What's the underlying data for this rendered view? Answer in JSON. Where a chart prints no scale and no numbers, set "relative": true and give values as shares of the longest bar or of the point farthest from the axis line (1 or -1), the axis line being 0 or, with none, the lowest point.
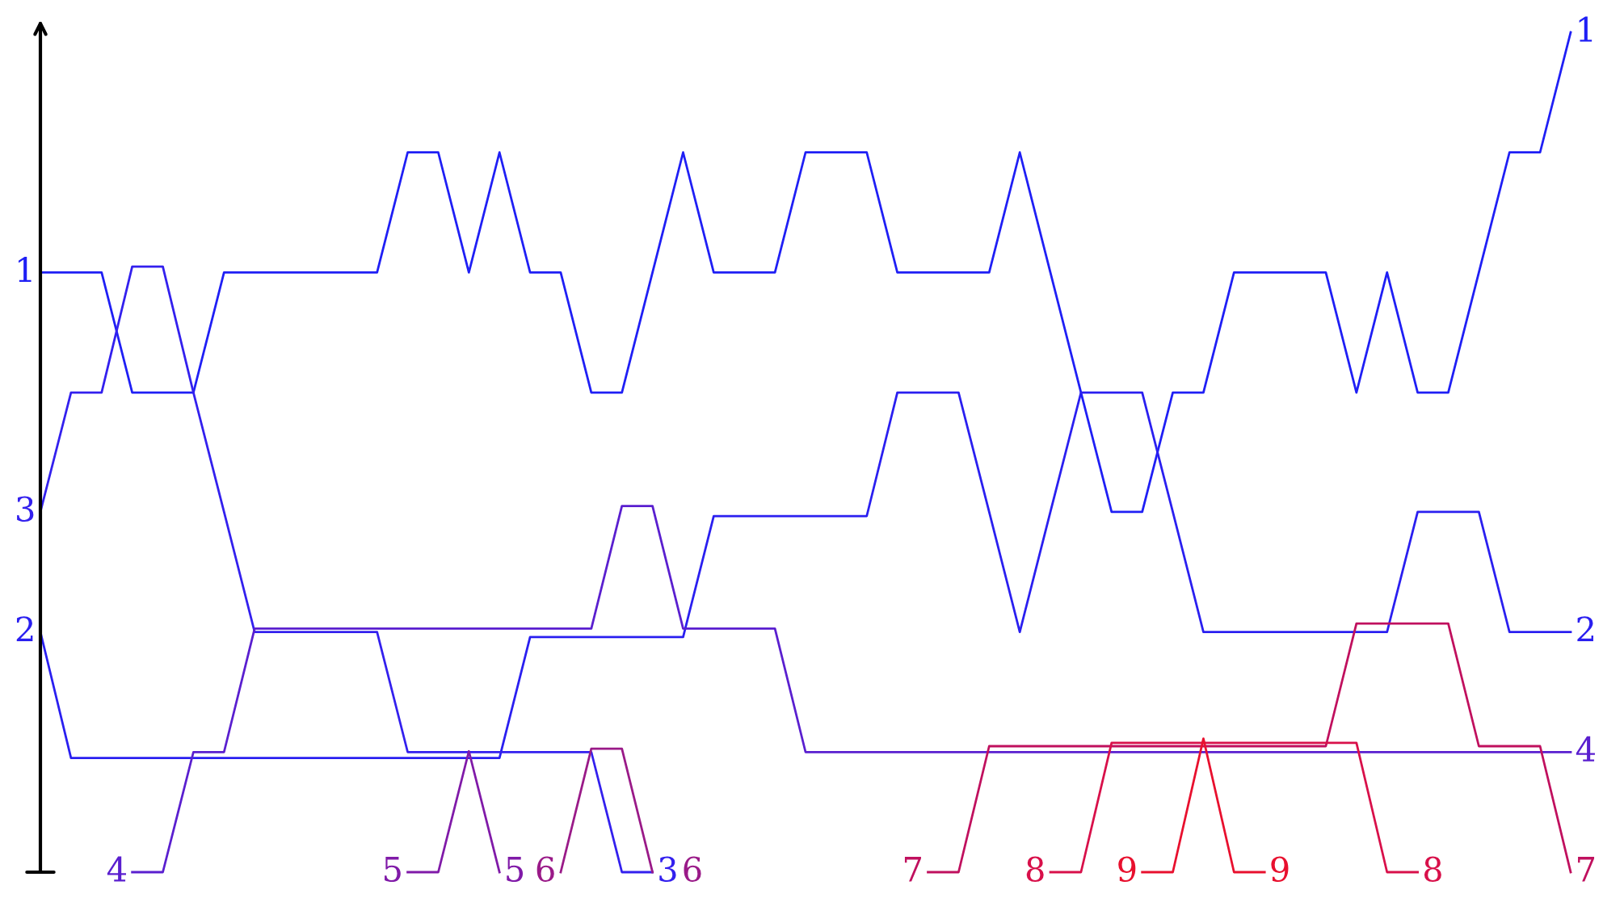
{
  "chart_data": {
    "type": "line",
    "relative": true,
    "categories": [
      null,
      null,
      null,
      null,
      null,
      null,
      null,
      null,
      null,
      null,
      null,
      null,
      null,
      null,
      null,
      null,
      null,
      null,
      null,
      null,
      null,
      null,
      null,
      null,
      null,
      null,
      null,
      null,
      null,
      null,
      null,
      null,
      null,
      null,
      null,
      null,
      null,
      null,
      null,
      null,
      null,
      null,
      null,
      null,
      null,
      null,
      null,
      null,
      null,
      null,
      null
    ],
    "series": [
      {
        "name": "1",
        "color": "#1f1ff5",
        "values": [
          0.714,
          0.714,
          0.714,
          0.571,
          0.571,
          0.571,
          0.714,
          0.714,
          0.714,
          0.714,
          0.714,
          0.714,
          0.857,
          0.857,
          0.714,
          0.857,
          0.714,
          0.714,
          0.571,
          0.571,
          0.714,
          0.857,
          0.714,
          0.714,
          0.714,
          0.857,
          0.857,
          0.857,
          0.714,
          0.714,
          0.714,
          0.714,
          0.857,
          0.714,
          0.571,
          0.429,
          0.429,
          0.571,
          0.571,
          0.714,
          0.714,
          0.714,
          0.714,
          0.571,
          0.714,
          0.571,
          0.571,
          0.714,
          0.857,
          0.857,
          1
        ]
      },
      {
        "name": "2",
        "color": "#2a1ff0",
        "values": [
          0.286,
          0.136,
          0.136,
          0.136,
          0.136,
          0.136,
          0.136,
          0.136,
          0.136,
          0.136,
          0.136,
          0.136,
          0.136,
          0.136,
          0.136,
          0.136,
          0.28,
          0.28,
          0.28,
          0.28,
          0.28,
          0.28,
          0.424,
          0.424,
          0.424,
          0.424,
          0.424,
          0.424,
          0.571,
          0.571,
          0.571,
          0.429,
          0.286,
          0.429,
          0.571,
          0.571,
          0.571,
          0.429,
          0.286,
          0.286,
          0.286,
          0.286,
          0.286,
          0.286,
          0.286,
          0.429,
          0.429,
          0.429,
          0.286,
          0.286,
          0.286
        ]
      },
      {
        "name": "3",
        "color": "#3320ee",
        "values": [
          0.429,
          0.571,
          0.571,
          0.721,
          0.721,
          0.571,
          0.429,
          0.286,
          0.286,
          0.286,
          0.286,
          0.286,
          0.143,
          0.143,
          0.143,
          0.143,
          0.143,
          0.143,
          0.143,
          0,
          0,
          null,
          null,
          null,
          null,
          null,
          null,
          null,
          null,
          null,
          null,
          null,
          null,
          null,
          null,
          null,
          null,
          null,
          null,
          null,
          null,
          null,
          null,
          null,
          null,
          null,
          null,
          null,
          null,
          null,
          null
        ]
      },
      {
        "name": "4",
        "color": "#5a1fcf",
        "values": [
          null,
          null,
          null,
          0,
          0,
          0.143,
          0.143,
          0.29,
          0.29,
          0.29,
          0.29,
          0.29,
          0.29,
          0.29,
          0.29,
          0.29,
          0.29,
          0.29,
          0.29,
          0.436,
          0.436,
          0.29,
          0.29,
          0.29,
          0.29,
          0.143,
          0.143,
          0.143,
          0.143,
          0.143,
          0.143,
          0.143,
          0.143,
          0.143,
          0.143,
          0.143,
          0.143,
          0.143,
          0.143,
          0.143,
          0.143,
          0.143,
          0.143,
          0.143,
          0.143,
          0.143,
          0.143,
          0.143,
          0.143,
          0.143,
          0.143
        ]
      },
      {
        "name": "5",
        "color": "#801aa8",
        "values": [
          null,
          null,
          null,
          null,
          null,
          null,
          null,
          null,
          null,
          null,
          null,
          null,
          0,
          0,
          0.144,
          0,
          null,
          null,
          null,
          null,
          null,
          null,
          null,
          null,
          null,
          null,
          null,
          null,
          null,
          null,
          null,
          null,
          null,
          null,
          null,
          null,
          null,
          null,
          null,
          null,
          null,
          null,
          null,
          null,
          null,
          null,
          null,
          null,
          null,
          null,
          null
        ]
      },
      {
        "name": "6",
        "color": "#9a1a88",
        "values": [
          null,
          null,
          null,
          null,
          null,
          null,
          null,
          null,
          null,
          null,
          null,
          null,
          null,
          null,
          null,
          null,
          null,
          0,
          0.147,
          0.147,
          0,
          null,
          null,
          null,
          null,
          null,
          null,
          null,
          null,
          null,
          null,
          null,
          null,
          null,
          null,
          null,
          null,
          null,
          null,
          null,
          null,
          null,
          null,
          null,
          null,
          null,
          null,
          null,
          null,
          null,
          null
        ]
      },
      {
        "name": "7",
        "color": "#c0105e",
        "values": [
          null,
          null,
          null,
          null,
          null,
          null,
          null,
          null,
          null,
          null,
          null,
          null,
          null,
          null,
          null,
          null,
          null,
          null,
          null,
          null,
          null,
          null,
          null,
          null,
          null,
          null,
          null,
          null,
          null,
          0,
          0,
          0.15,
          0.15,
          0.15,
          0.15,
          0.15,
          0.15,
          0.15,
          0.15,
          0.15,
          0.15,
          0.15,
          0.15,
          0.296,
          0.296,
          0.296,
          0.296,
          0.15,
          0.15,
          0.15,
          0
        ]
      },
      {
        "name": "8",
        "color": "#d8104a",
        "values": [
          null,
          null,
          null,
          null,
          null,
          null,
          null,
          null,
          null,
          null,
          null,
          null,
          null,
          null,
          null,
          null,
          null,
          null,
          null,
          null,
          null,
          null,
          null,
          null,
          null,
          null,
          null,
          null,
          null,
          null,
          null,
          null,
          null,
          0,
          0,
          0.154,
          0.154,
          0.154,
          0.154,
          0.154,
          0.154,
          0.154,
          0.154,
          0.154,
          0,
          0,
          null,
          null,
          null,
          null,
          null
        ]
      },
      {
        "name": "9",
        "color": "#e8102e",
        "values": [
          null,
          null,
          null,
          null,
          null,
          null,
          null,
          null,
          null,
          null,
          null,
          null,
          null,
          null,
          null,
          null,
          null,
          null,
          null,
          null,
          null,
          null,
          null,
          null,
          null,
          null,
          null,
          null,
          null,
          null,
          null,
          null,
          null,
          null,
          null,
          null,
          0,
          0,
          0.159,
          0,
          0,
          null,
          null,
          null,
          null,
          null,
          null,
          null,
          null,
          null,
          null
        ]
      }
    ]
  }
}
